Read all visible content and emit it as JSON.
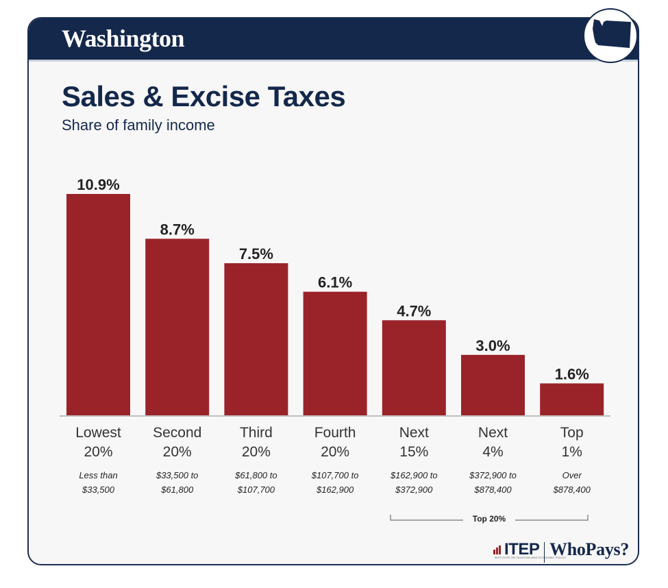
{
  "header": {
    "state": "Washington"
  },
  "title": "Sales & Excise Taxes",
  "subtitle": "Share of family income",
  "bracket": {
    "label": "Top 20%"
  },
  "logo": {
    "itep": "ITEP",
    "itep_sub": "INSTITUTE ON TAXATION AND ECONOMIC POLICY",
    "whopays": "WhoPays?"
  },
  "colors": {
    "bar": "#9a232a",
    "navy": "#14284b",
    "background": "#f7f7f7"
  },
  "chart_data": {
    "type": "bar",
    "title": "Sales & Excise Taxes",
    "subtitle": "Share of family income",
    "categories": [
      "Lowest 20%",
      "Second 20%",
      "Third 20%",
      "Fourth 20%",
      "Next 15%",
      "Next 4%",
      "Top 1%"
    ],
    "category_lines": [
      [
        "Lowest",
        "20%"
      ],
      [
        "Second",
        "20%"
      ],
      [
        "Third",
        "20%"
      ],
      [
        "Fourth",
        "20%"
      ],
      [
        "Next",
        "15%"
      ],
      [
        "Next",
        "4%"
      ],
      [
        "Top",
        "1%"
      ]
    ],
    "income_ranges": [
      [
        "Less than",
        "$33,500"
      ],
      [
        "$33,500 to",
        "$61,800"
      ],
      [
        "$61,800 to",
        "$107,700"
      ],
      [
        "$107,700 to",
        "$162,900"
      ],
      [
        "$162,900 to",
        "$372,900"
      ],
      [
        "$372,900 to",
        "$878,400"
      ],
      [
        "Over",
        "$878,400"
      ]
    ],
    "values": [
      10.9,
      8.7,
      7.5,
      6.1,
      4.7,
      3.0,
      1.6
    ],
    "value_labels": [
      "10.9%",
      "8.7%",
      "7.5%",
      "6.1%",
      "4.7%",
      "3.0%",
      "1.6%"
    ],
    "ylim": [
      0,
      10.9
    ],
    "grid": false,
    "legend": "none"
  }
}
